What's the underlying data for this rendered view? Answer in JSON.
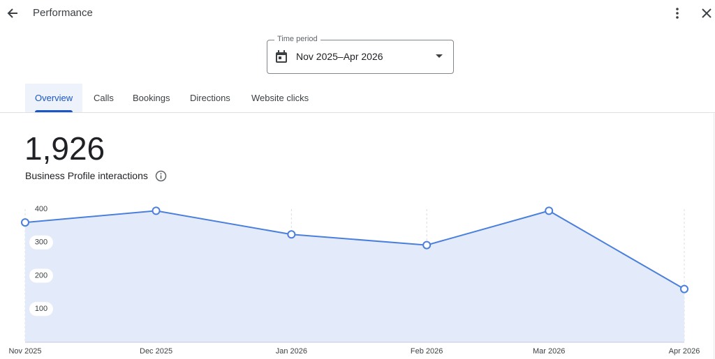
{
  "header": {
    "title": "Performance"
  },
  "time_period": {
    "label": "Time period",
    "value": "Nov 2025–Apr 2026"
  },
  "tabs": [
    "Overview",
    "Calls",
    "Bookings",
    "Directions",
    "Website clicks"
  ],
  "summary": {
    "total": "1,926",
    "label": "Business Profile interactions"
  },
  "chart_data": {
    "type": "area",
    "x": [
      "Nov 2025",
      "Dec 2025",
      "Jan 2026",
      "Feb 2026",
      "Mar 2026",
      "Apr 2026"
    ],
    "series": [
      {
        "name": "Business Profile interactions",
        "color": "#4a7fdc",
        "values": [
          360,
          395,
          324,
          292,
          395,
          160
        ]
      }
    ],
    "ylim": [
      0,
      400
    ],
    "yticks": [
      100,
      200,
      300,
      400
    ],
    "grid": true
  }
}
